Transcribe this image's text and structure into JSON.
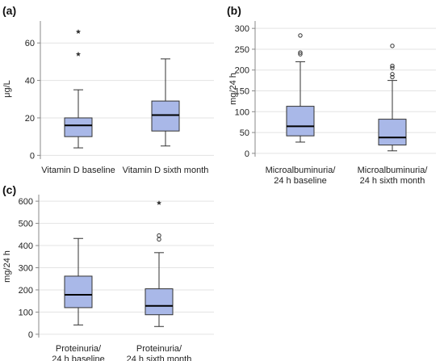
{
  "chart_data": [
    {
      "panel": "(a)",
      "type": "boxplot",
      "ylabel": "μg/L",
      "ylim": [
        -2,
        70
      ],
      "yticks": [
        0,
        20,
        40,
        60
      ],
      "grid": true,
      "categories": [
        {
          "label": [
            "Vitamin D baseline"
          ],
          "min": 4,
          "q1": 10,
          "median": 16,
          "q3": 20,
          "max": 35,
          "outliers": [
            {
              "value": 54,
              "style": "star"
            },
            {
              "value": 66,
              "style": "star"
            }
          ]
        },
        {
          "label": [
            "Vitamin D sixth month"
          ],
          "min": 5,
          "q1": 13,
          "median": 21.5,
          "q3": 29,
          "max": 51.5,
          "outliers": []
        }
      ]
    },
    {
      "panel": "(b)",
      "type": "boxplot",
      "ylabel": "mg/24 h",
      "ylim": [
        -8,
        310
      ],
      "yticks": [
        0,
        50,
        100,
        150,
        200,
        250,
        300
      ],
      "grid": true,
      "categories": [
        {
          "label": [
            "Microalbuminuria/",
            "24 h baseline"
          ],
          "min": 27,
          "q1": 42,
          "median": 65,
          "q3": 113,
          "max": 220,
          "outliers": [
            {
              "value": 238,
              "style": "circle"
            },
            {
              "value": 242,
              "style": "circle"
            },
            {
              "value": 283,
              "style": "circle"
            }
          ]
        },
        {
          "label": [
            "Microalbuminuria/",
            "24 h sixth month"
          ],
          "min": 6,
          "q1": 20,
          "median": 38,
          "q3": 82,
          "max": 175,
          "outliers": [
            {
              "value": 183,
              "style": "circle"
            },
            {
              "value": 190,
              "style": "circle"
            },
            {
              "value": 205,
              "style": "circle"
            },
            {
              "value": 210,
              "style": "circle"
            },
            {
              "value": 258,
              "style": "circle"
            }
          ]
        }
      ]
    },
    {
      "panel": "(c)",
      "type": "boxplot",
      "ylabel": "mg/24 h",
      "ylim": [
        -15,
        615
      ],
      "yticks": [
        0,
        100,
        200,
        300,
        400,
        500,
        600
      ],
      "grid": true,
      "categories": [
        {
          "label": [
            "Proteinuria/",
            "24 h baseline"
          ],
          "min": 42,
          "q1": 120,
          "median": 178,
          "q3": 262,
          "max": 432,
          "outliers": []
        },
        {
          "label": [
            "Proteinuria/",
            "24 h sixth month"
          ],
          "min": 35,
          "q1": 88,
          "median": 128,
          "q3": 205,
          "max": 368,
          "outliers": [
            {
              "value": 428,
              "style": "circle"
            },
            {
              "value": 445,
              "style": "circle"
            },
            {
              "value": 592,
              "style": "star"
            }
          ]
        }
      ]
    }
  ],
  "colors": {
    "box_fill": "#a9b8e8",
    "box_stroke": "#333333",
    "grid": "#e3e3e3"
  }
}
